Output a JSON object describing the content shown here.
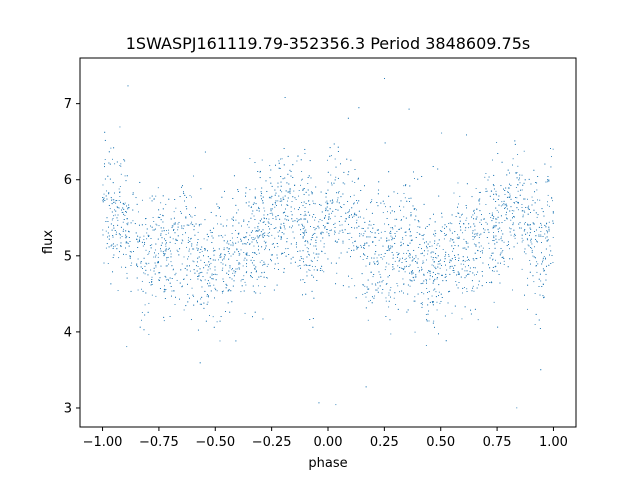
{
  "colors": {
    "points": "#1f77b4",
    "axes": "#000000",
    "background": "#ffffff"
  },
  "chart_data": {
    "type": "scatter",
    "title": "1SWASPJ161119.79-352356.3 Period 3848609.75s",
    "xlabel": "phase",
    "ylabel": "flux",
    "xlim": [
      -1.1,
      1.1
    ],
    "ylim": [
      2.75,
      7.6
    ],
    "x_ticks": [
      -1.0,
      -0.75,
      -0.5,
      -0.25,
      0.0,
      0.25,
      0.5,
      0.75,
      1.0
    ],
    "x_tick_labels": [
      "−1.00",
      "−0.75",
      "−0.50",
      "−0.25",
      "0.00",
      "0.25",
      "0.50",
      "0.75",
      "1.00"
    ],
    "y_ticks": [
      3,
      4,
      5,
      6,
      7
    ],
    "y_tick_labels": [
      "3",
      "4",
      "5",
      "6",
      "7"
    ],
    "grid": false,
    "legend": "none",
    "series": [
      {
        "phase_range": [
          -1.0,
          1.0
        ],
        "point_density_per_unit_phase": 2200,
        "profile": [
          {
            "phase": -1.0,
            "flux": 5.6
          },
          {
            "phase": -0.9,
            "flux": 5.5
          },
          {
            "phase": -0.82,
            "flux": 4.95
          },
          {
            "phase": -0.75,
            "flux": 5.05
          },
          {
            "phase": -0.65,
            "flux": 5.1
          },
          {
            "phase": -0.55,
            "flux": 4.85
          },
          {
            "phase": -0.45,
            "flux": 4.9
          },
          {
            "phase": -0.35,
            "flux": 5.15
          },
          {
            "phase": -0.25,
            "flux": 5.4
          },
          {
            "phase": -0.15,
            "flux": 5.6
          },
          {
            "phase": -0.05,
            "flux": 5.1
          },
          {
            "phase": 0.0,
            "flux": 5.6
          },
          {
            "phase": 0.1,
            "flux": 5.5
          },
          {
            "phase": 0.18,
            "flux": 4.95
          },
          {
            "phase": 0.25,
            "flux": 5.05
          },
          {
            "phase": 0.35,
            "flux": 5.1
          },
          {
            "phase": 0.45,
            "flux": 4.85
          },
          {
            "phase": 0.55,
            "flux": 4.9
          },
          {
            "phase": 0.65,
            "flux": 5.15
          },
          {
            "phase": 0.75,
            "flux": 5.4
          },
          {
            "phase": 0.85,
            "flux": 5.6
          },
          {
            "phase": 0.95,
            "flux": 5.1
          },
          {
            "phase": 1.0,
            "flux": 5.6
          }
        ],
        "scatter_sigma": 0.35,
        "outlier_flux_range": [
          2.95,
          7.4
        ]
      }
    ]
  }
}
